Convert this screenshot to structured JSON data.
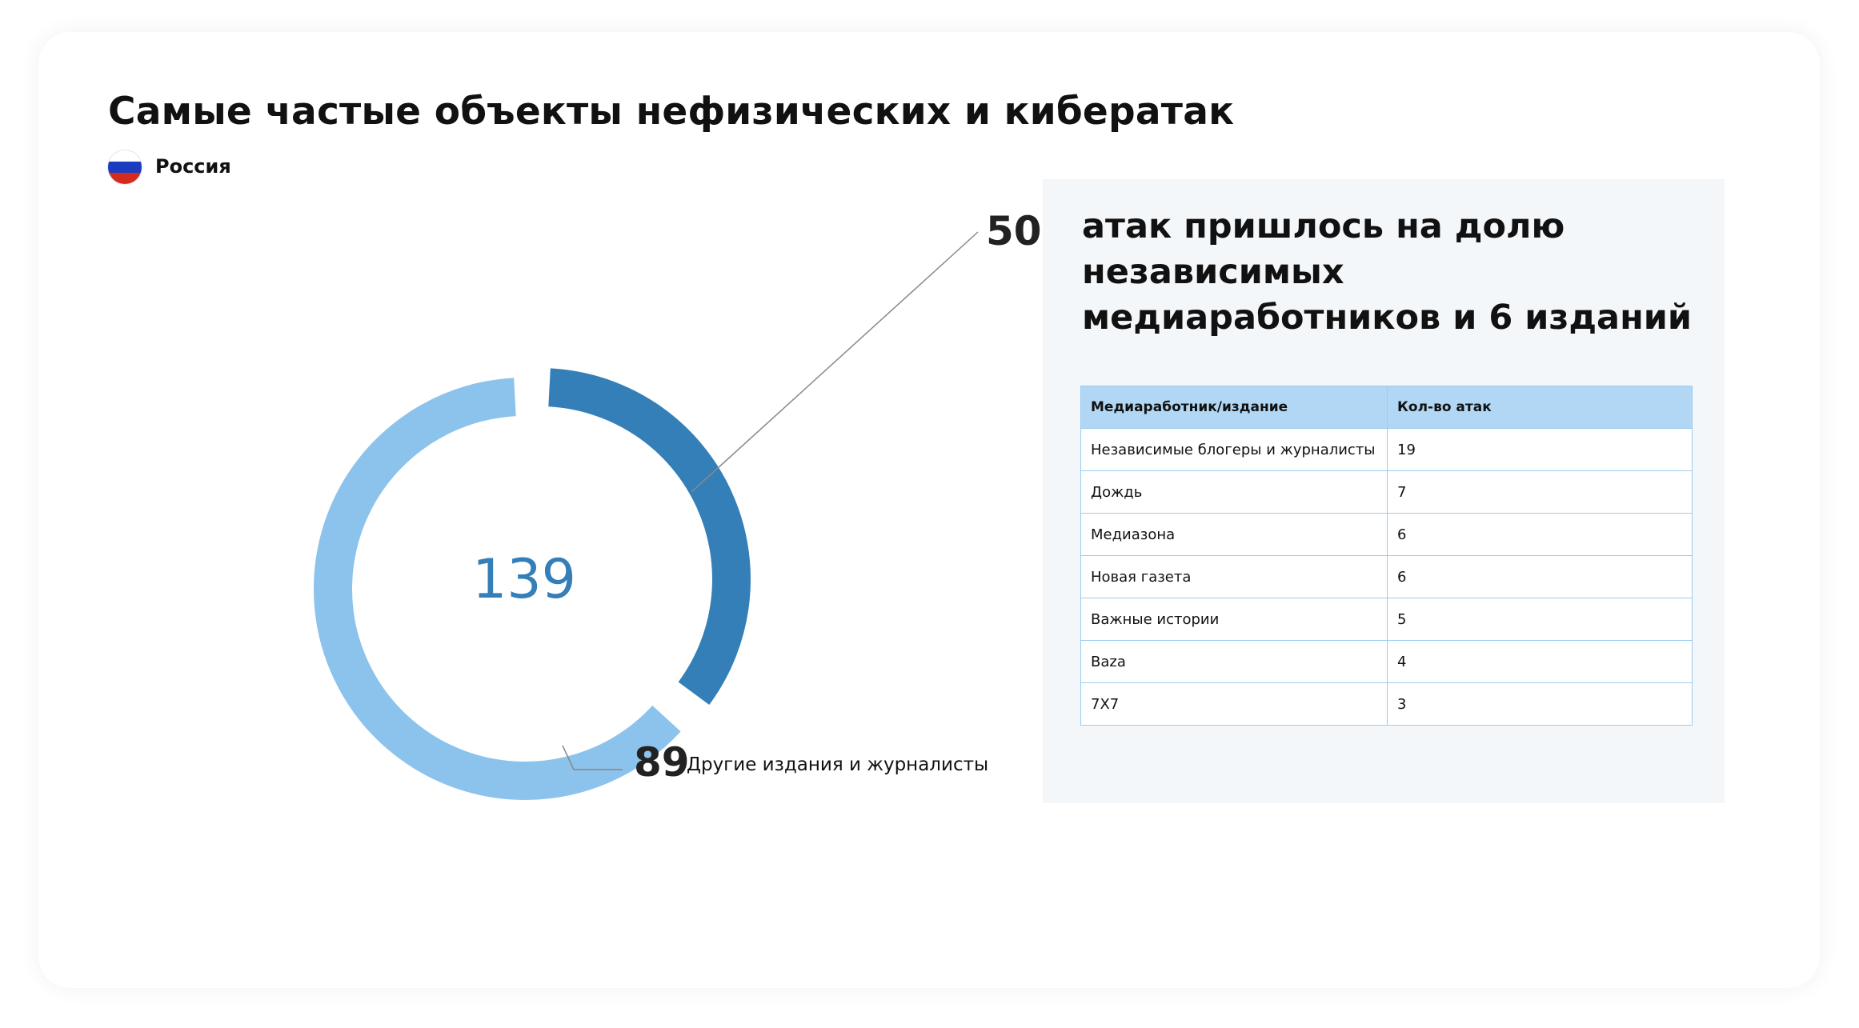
{
  "title": "Самые частые объекты нефизических и кибератак",
  "country": "Россия",
  "colors": {
    "primary": "#347fb8",
    "secondary": "#8cc3ec",
    "table_header": "#b2d7f5",
    "table_border": "#9ccbef",
    "panel_bg": "#f4f7fa",
    "flag_white": "#ffffff",
    "flag_blue": "#1c3dbf",
    "flag_red": "#d52b1e"
  },
  "chart_data": [
    {
      "type": "pie",
      "variant": "donut",
      "total": "139",
      "slices": [
        {
          "value": 50,
          "value_label": "50",
          "label": "",
          "color": "#347fb8"
        },
        {
          "value": 89,
          "value_label": "89",
          "label": "Другие издания и журналисты",
          "color": "#8cc3ec"
        }
      ]
    },
    {
      "type": "table",
      "columns": [
        "Медиаработник/издание",
        "Кол-во атак"
      ],
      "rows": [
        [
          "Независимые блогеры и журналисты",
          "19"
        ],
        [
          "Дождь",
          "7"
        ],
        [
          "Медиазона",
          "6"
        ],
        [
          "Новая газета",
          "6"
        ],
        [
          "Важные истории",
          "5"
        ],
        [
          "Baza",
          "4"
        ],
        [
          "7X7",
          "3"
        ]
      ]
    }
  ],
  "panel": {
    "headline": "атак пришлось на долю независимых медиаработников и 6 изданий"
  }
}
